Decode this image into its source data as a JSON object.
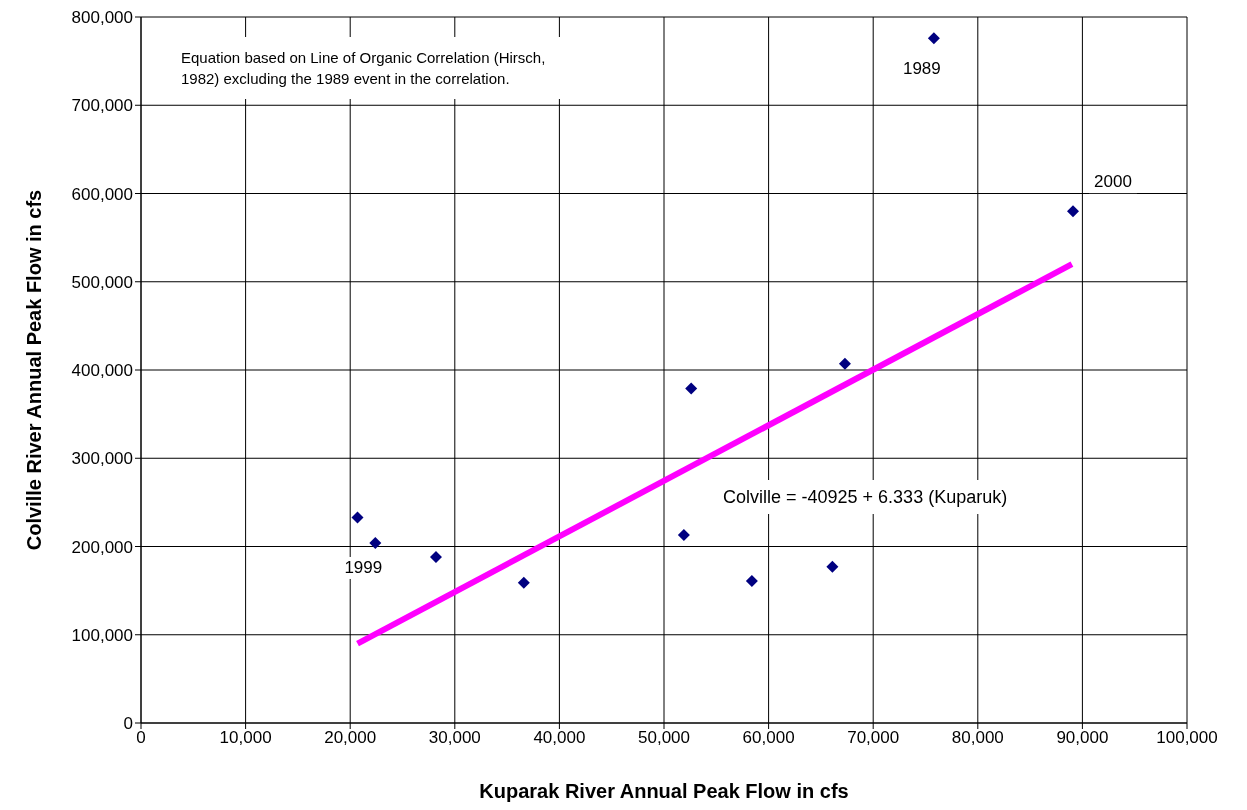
{
  "chart_data": {
    "type": "scatter",
    "xlabel": "Kuparak River Annual Peak Flow in cfs",
    "ylabel": "Colville River Annual Peak Flow in cfs",
    "xlim": [
      0,
      100000
    ],
    "xticks": [
      {
        "value": 0,
        "label": "0"
      },
      {
        "value": 10000,
        "label": "10,000"
      },
      {
        "value": 20000,
        "label": "20,000"
      },
      {
        "value": 30000,
        "label": "30,000"
      },
      {
        "value": 40000,
        "label": "40,000"
      },
      {
        "value": 50000,
        "label": "50,000"
      },
      {
        "value": 60000,
        "label": "60,000"
      },
      {
        "value": 70000,
        "label": "70,000"
      },
      {
        "value": 80000,
        "label": "80,000"
      },
      {
        "value": 90000,
        "label": "90,000"
      },
      {
        "value": 100000,
        "label": "100,000"
      }
    ],
    "ylim": [
      0,
      800000
    ],
    "yticks": [
      {
        "value": 0,
        "label": "0"
      },
      {
        "value": 100000,
        "label": "100,000"
      },
      {
        "value": 200000,
        "label": "200,000"
      },
      {
        "value": 300000,
        "label": "300,000"
      },
      {
        "value": 400000,
        "label": "400,000"
      },
      {
        "value": 500000,
        "label": "500,000"
      },
      {
        "value": 600000,
        "label": "600,000"
      },
      {
        "value": 700000,
        "label": "700,000"
      },
      {
        "value": 800000,
        "label": "800,000"
      }
    ],
    "grid": true,
    "marker": "diamond",
    "series": [
      {
        "color": "#000080",
        "x": [
          20700,
          22400,
          28200,
          36600,
          51900,
          52600,
          58400,
          66100,
          67300,
          75800,
          89100
        ],
        "values": [
          233000,
          204000,
          188000,
          159000,
          213000,
          379000,
          161000,
          177000,
          407000,
          776000,
          580000
        ]
      },
      {
        "type": "line",
        "marker": "none",
        "color": "#ff00ff",
        "x": [
          20700,
          89000
        ],
        "values": [
          90000,
          520000
        ]
      }
    ],
    "annotations": [
      {
        "text": "1989",
        "x": 75800,
        "y": 776000
      },
      {
        "text": "2000",
        "x": 89100,
        "y": 580000
      },
      {
        "text": "1999",
        "x": 22400,
        "y": 204000
      },
      "Equation based on Line of Organic Correlation (Hirsch, 1982) excluding the 1989 event in the correlation.",
      "Colville = -40925 + 6.333 (Kuparuk)"
    ]
  }
}
